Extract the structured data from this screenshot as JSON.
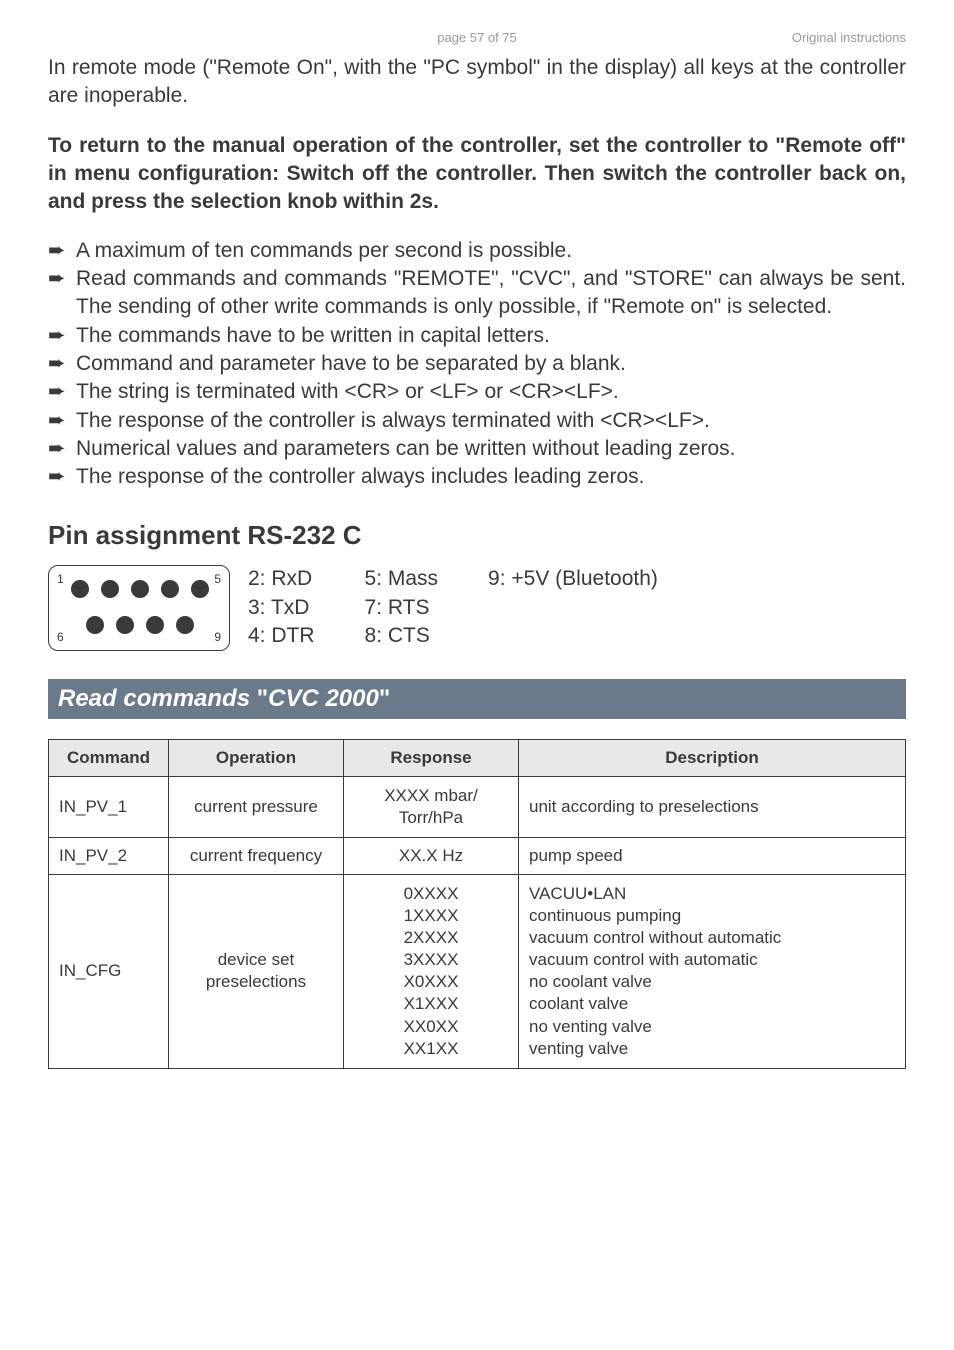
{
  "header": {
    "page_label": "page 57 of 75",
    "doc_label": "Original instructions"
  },
  "intro": "In remote mode (\"Remote On\", with the \"PC symbol\" in the display) all keys at the controller are inoperable.",
  "bold_para": "To return to the manual operation of the controller, set the controller to \"Remote off\" in menu configuration:  Switch off the controller. Then switch the controller back on, and press the selection knob within 2s.",
  "bullets": [
    "A maximum of ten commands per second is possible.",
    "Read commands and commands \"REMOTE\", \"CVC\", and \"STORE\" can always be sent. The sending of other write commands is only possible, if \"Remote on\" is selected.",
    "The commands have to be written in capital letters.",
    "Command and parameter have to be separated by a blank.",
    "The string is terminated with <CR> or <LF> or <CR><LF>.",
    "The response of the controller is always terminated with <CR><LF>.",
    "Numerical values and parameters can be written without leading zeros.",
    "The response of the controller always includes leading zeros."
  ],
  "pin_heading": "Pin assignment RS-232 C",
  "pins": {
    "diagram_labels": {
      "tl": "1",
      "tr": "5",
      "bl": "6",
      "br": "9"
    },
    "col1": [
      "2: RxD",
      "3: TxD",
      "4: DTR"
    ],
    "col2": [
      "5: Mass",
      "7: RTS",
      "8: CTS"
    ],
    "col3": [
      "9: +5V (Bluetooth)"
    ]
  },
  "banner": {
    "part1": "Read commands",
    "quote_open": " \"",
    "part2": "CVC 2000",
    "quote_close": "\""
  },
  "table": {
    "headers": [
      "Command",
      "Operation",
      "Response",
      "Description"
    ],
    "rows": [
      {
        "command": "IN_PV_1",
        "operation": "current pressure",
        "response": "XXXX mbar/\nTorr/hPa",
        "description": "unit according to preselections"
      },
      {
        "command": "IN_PV_2",
        "operation": "current frequency",
        "response": "XX.X Hz",
        "description": "pump speed"
      },
      {
        "command": "IN_CFG",
        "operation": "device set\npreselections",
        "response": "0XXXX\n1XXXX\n2XXXX\n3XXXX\nX0XXX\nX1XXX\nXX0XX\nXX1XX",
        "description": "VACUU•LAN\ncontinuous pumping\nvacuum control without automatic\nvacuum control with automatic\nno coolant valve\ncoolant valve\nno venting valve\nventing valve"
      }
    ]
  }
}
